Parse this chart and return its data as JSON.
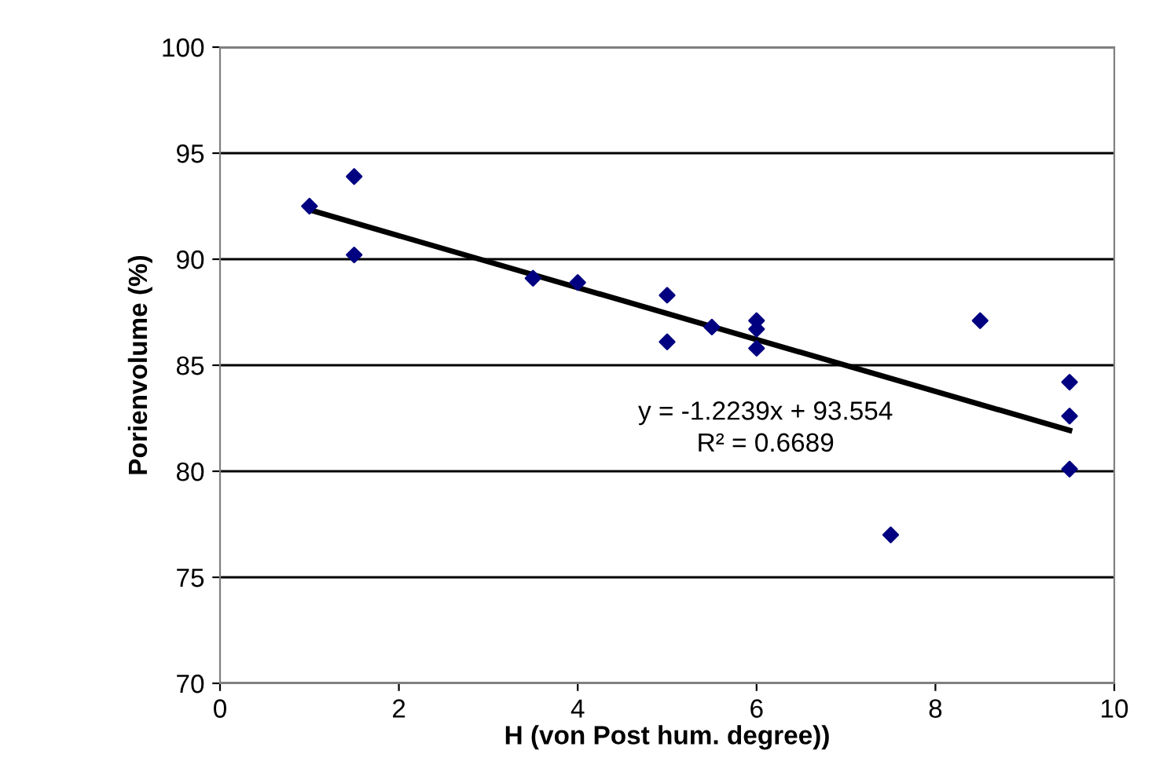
{
  "chart_data": {
    "type": "scatter",
    "xlabel": "H (von Post hum. degree))",
    "ylabel": "Porienvolume (%)",
    "xlim": [
      0,
      10
    ],
    "xticks": [
      0,
      2,
      4,
      6,
      8,
      10
    ],
    "ylim": [
      70,
      100
    ],
    "yticks": [
      70,
      75,
      80,
      85,
      90,
      95,
      100
    ],
    "grid": "y",
    "legend": false,
    "series": [
      {
        "marker": "diamond",
        "color": "#000080",
        "x": [
          1,
          1.5,
          1.5,
          3.5,
          4,
          5,
          5,
          5.5,
          6,
          6,
          6,
          7.5,
          8.5,
          9.5,
          9.5,
          9.5
        ],
        "values": [
          92.5,
          93.9,
          90.2,
          89.1,
          88.9,
          88.3,
          86.1,
          86.8,
          87.1,
          86.7,
          85.8,
          77.0,
          87.1,
          84.2,
          82.6,
          80.1
        ]
      },
      {
        "type": "line",
        "color": "#000000",
        "x": [
          1,
          9.5
        ],
        "values": [
          92.33,
          81.93
        ]
      }
    ],
    "annotations": [
      "y = -1.2239x + 93.554",
      "R² = 0.6689"
    ]
  }
}
